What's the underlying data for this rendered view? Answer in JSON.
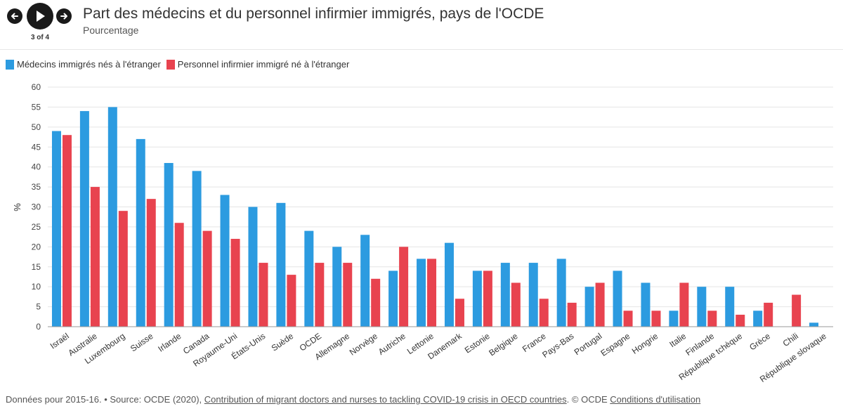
{
  "header": {
    "title": "Part des médecins et du personnel infirmier immigrés, pays de l'OCDE",
    "subtitle": "Pourcentage",
    "counter": "3 of 4"
  },
  "colors": {
    "doctors": "#2c9be0",
    "nurses": "#e8434f",
    "grid": "#e5e5e5",
    "text": "#333333"
  },
  "legend": {
    "doctors": "Médecins immigrés nés à l'étranger",
    "nurses": "Personnel infirmier immigré né à l'étranger"
  },
  "chart_data": {
    "type": "bar",
    "ylabel": "%",
    "ylim": [
      0,
      60
    ],
    "yticks": [
      0,
      5,
      10,
      15,
      20,
      25,
      30,
      35,
      40,
      45,
      50,
      55,
      60
    ],
    "grid": true,
    "categories": [
      "Israël",
      "Australie",
      "Luxembourg",
      "Suisse",
      "Irlande",
      "Canada",
      "Royaume-Uni",
      "États-Unis",
      "Suède",
      "OCDE",
      "Allemagne",
      "Norvège",
      "Autriche",
      "Lettonie",
      "Danemark",
      "Estonie",
      "Belgique",
      "France",
      "Pays-Bas",
      "Portugal",
      "Espagne",
      "Hongrie",
      "Italie",
      "Finlande",
      "République tchèque",
      "Grèce",
      "Chili",
      "République slovaque"
    ],
    "series": [
      {
        "name": "Médecins immigrés nés à l'étranger",
        "values": [
          49,
          54,
          55,
          47,
          41,
          39,
          33,
          30,
          31,
          24,
          20,
          23,
          14,
          17,
          21,
          14,
          16,
          16,
          17,
          10,
          14,
          11,
          4,
          10,
          10,
          4,
          null,
          1
        ]
      },
      {
        "name": "Personnel infirmier immigré né à l'étranger",
        "values": [
          48,
          35,
          29,
          32,
          26,
          24,
          22,
          16,
          13,
          16,
          16,
          12,
          20,
          17,
          7,
          14,
          11,
          7,
          6,
          11,
          4,
          4,
          11,
          4,
          3,
          6,
          8,
          null
        ]
      }
    ]
  },
  "footer": {
    "prefix": "Données pour 2015-16. • Source: OCDE (2020),",
    "link": "Contribution of migrant doctors and nurses to tackling COVID-19 crisis in OECD countries",
    "middle": ". © OCDE",
    "terms": "Conditions d'utilisation"
  }
}
